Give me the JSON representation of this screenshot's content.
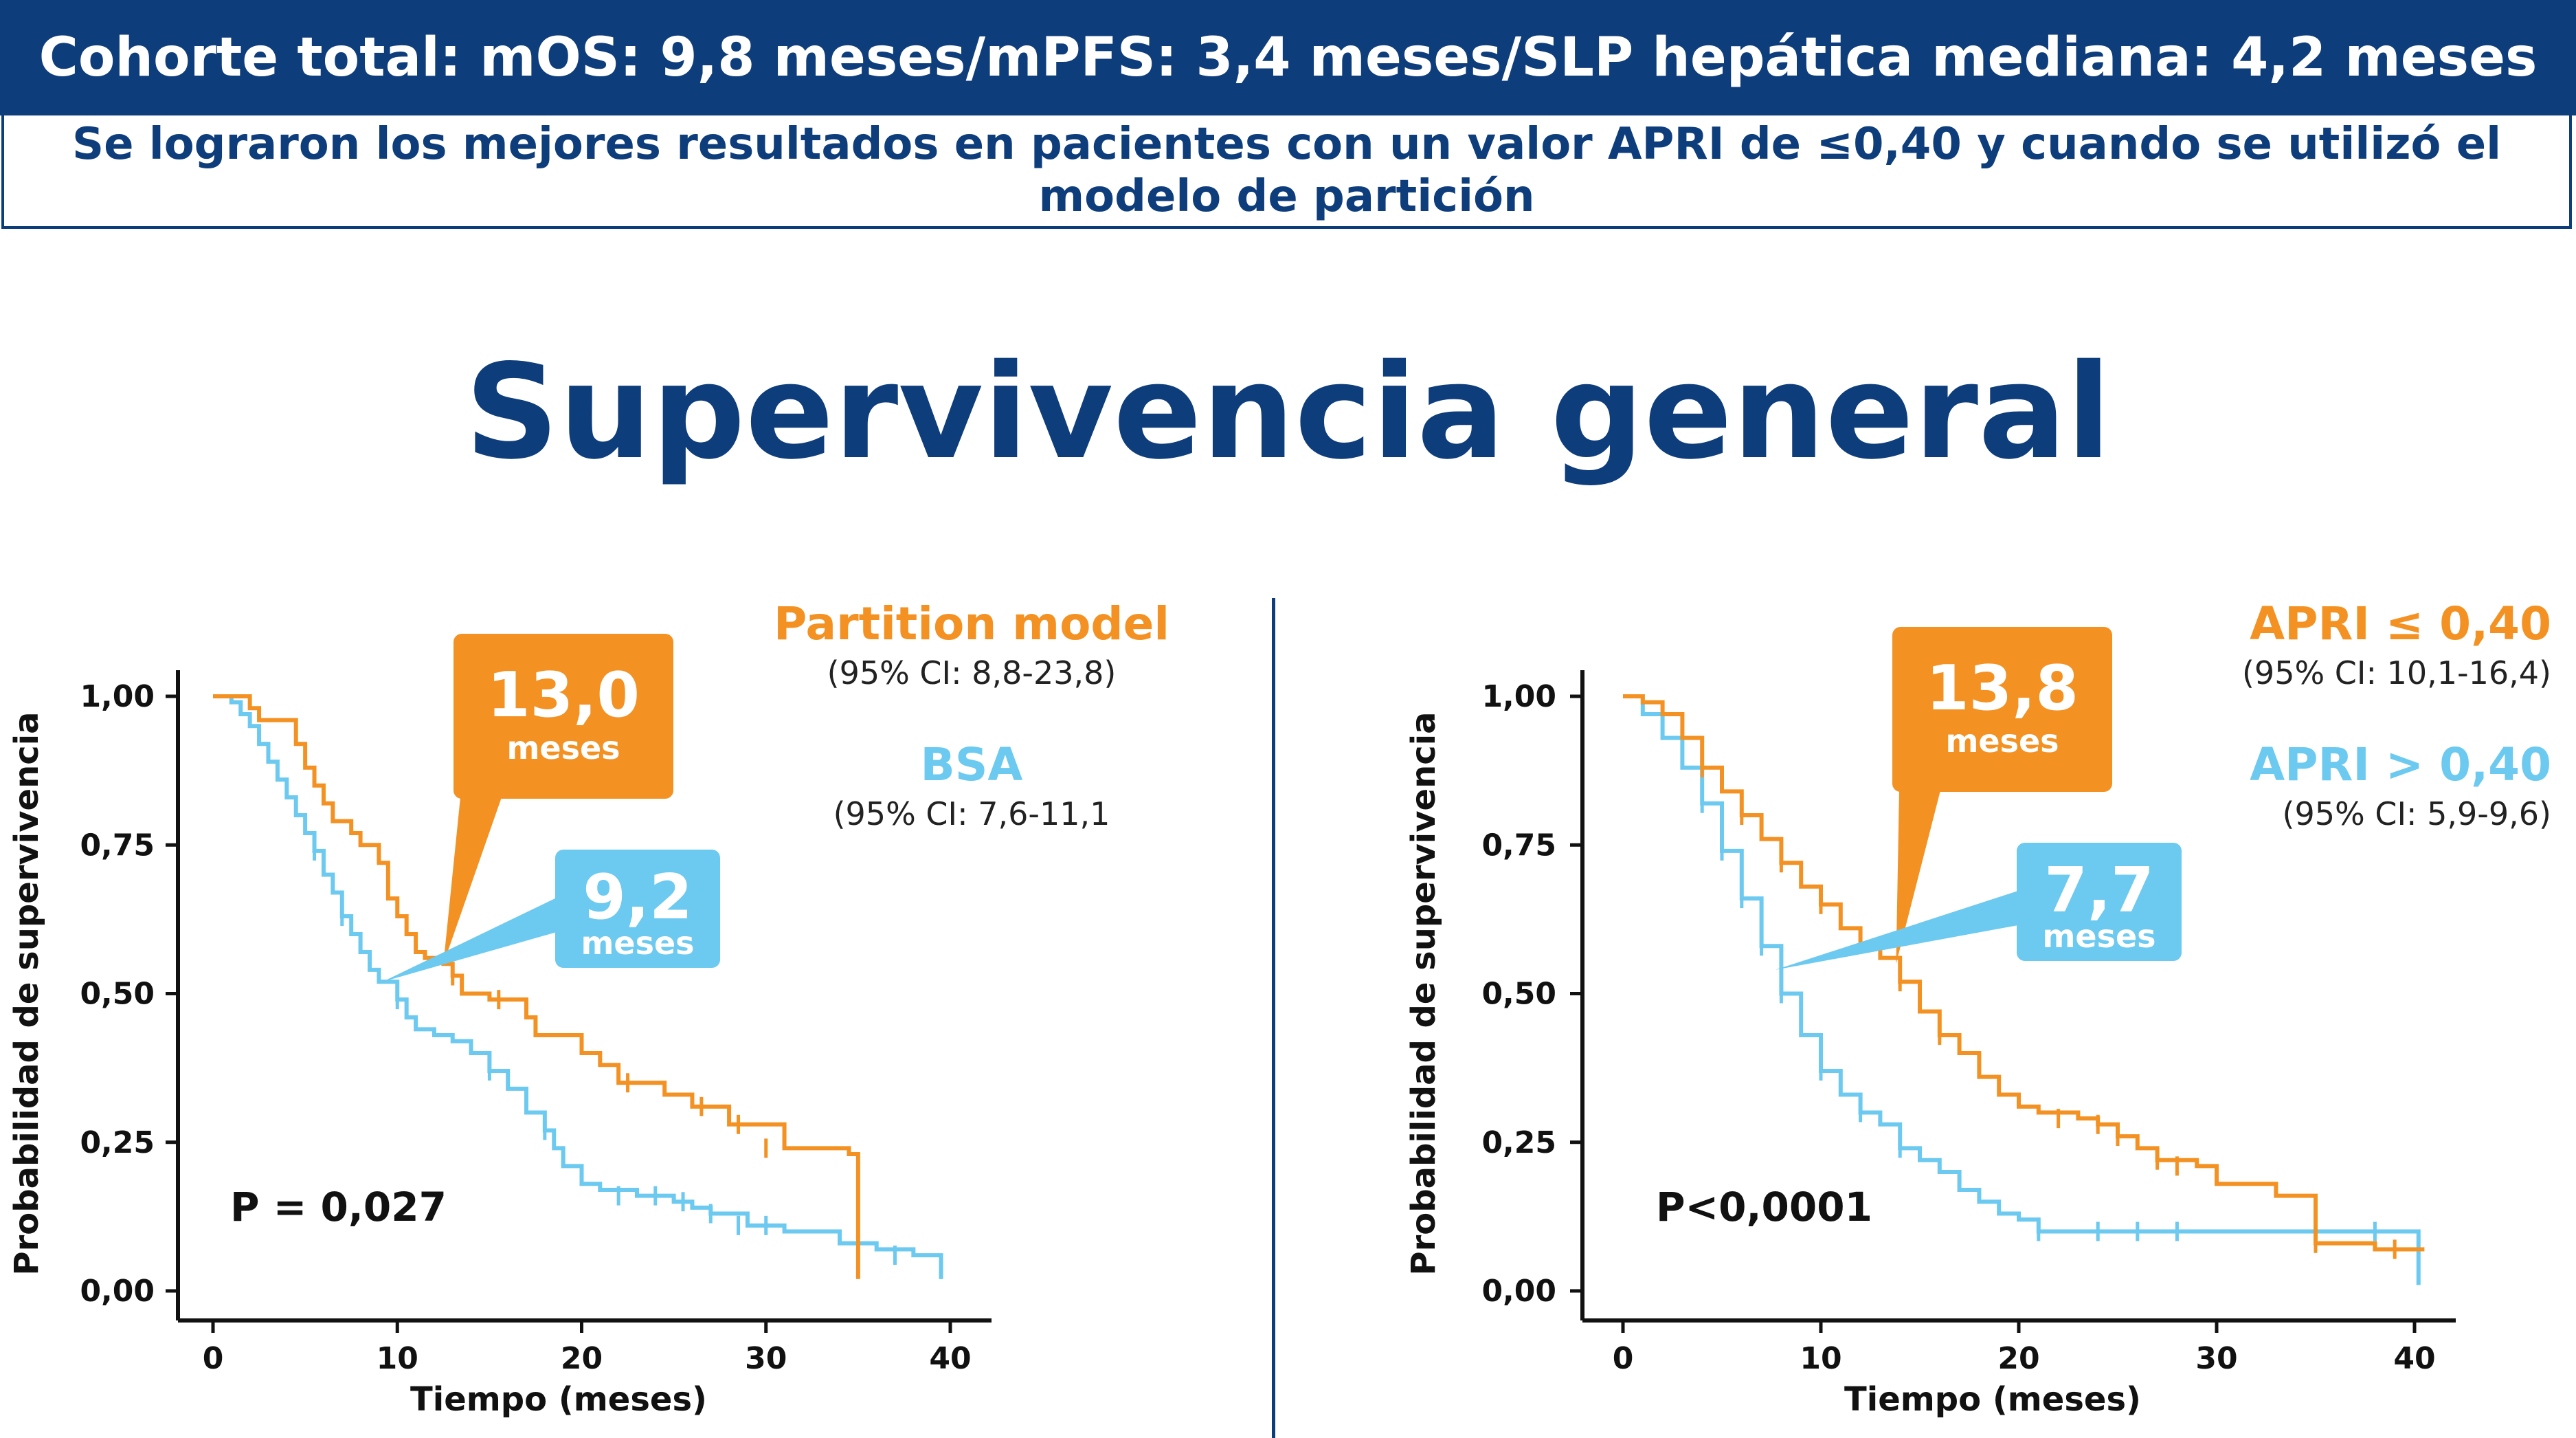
{
  "header": {
    "banner": "Cohorte total: mOS: 9,8 meses/mPFS: 3,4 meses/SLP hepática mediana: 4,2 meses",
    "sub_line1": "Se lograron los mejores resultados en pacientes con un valor APRI de ≤0,40 y cuando se utilizó el",
    "sub_line2": "modelo de partición"
  },
  "main_title": "Supervivencia general",
  "colors": {
    "navy": "#0e3d7c",
    "orange": "#f39223",
    "blue": "#6cc9ef"
  },
  "chart_data": [
    {
      "type": "line",
      "subtype": "kaplan-meier",
      "ylabel": "Probabilidad de supervivencia",
      "xlabel": "Tiempo (meses)",
      "xlim": [
        0,
        40
      ],
      "ylim": [
        0,
        1
      ],
      "xticks": [
        0,
        10,
        20,
        30,
        40
      ],
      "xtick_labels": [
        "0",
        "10",
        "20",
        "30",
        "40"
      ],
      "yticks": [
        0,
        0.25,
        0.5,
        0.75,
        1
      ],
      "ytick_labels": [
        "0,00",
        "0,25",
        "0,50",
        "0,75",
        "1,00"
      ],
      "p_value": "P = 0,027",
      "series": [
        {
          "name": "Partition model",
          "ci": "(95% CI: 8,8-23,8)",
          "color": "#f39223",
          "median": {
            "value": "13,0",
            "unit": "meses",
            "x": 12.5,
            "y": 0.55
          },
          "steps": [
            [
              0,
              1.0
            ],
            [
              2,
              0.98
            ],
            [
              2.5,
              0.96
            ],
            [
              4.5,
              0.92
            ],
            [
              5,
              0.88
            ],
            [
              5.5,
              0.85
            ],
            [
              6,
              0.82
            ],
            [
              6.5,
              0.79
            ],
            [
              7.5,
              0.77
            ],
            [
              8,
              0.75
            ],
            [
              9,
              0.72
            ],
            [
              9.5,
              0.66
            ],
            [
              10,
              0.63
            ],
            [
              10.5,
              0.6
            ],
            [
              11,
              0.57
            ],
            [
              11.5,
              0.56
            ],
            [
              12.5,
              0.55
            ],
            [
              13,
              0.53
            ],
            [
              13.5,
              0.5
            ],
            [
              15,
              0.49
            ],
            [
              17,
              0.46
            ],
            [
              17.5,
              0.43
            ],
            [
              20,
              0.4
            ],
            [
              21,
              0.38
            ],
            [
              22,
              0.35
            ],
            [
              24.5,
              0.33
            ],
            [
              26,
              0.31
            ],
            [
              28,
              0.28
            ],
            [
              31,
              0.24
            ],
            [
              34.5,
              0.23
            ],
            [
              35,
              0.02
            ]
          ],
          "end_x": 35,
          "censors": [
            [
              13,
              0.53
            ],
            [
              15.5,
              0.49
            ],
            [
              22.5,
              0.35
            ],
            [
              26.5,
              0.31
            ],
            [
              28.5,
              0.28
            ],
            [
              30,
              0.24
            ]
          ]
        },
        {
          "name": "BSA",
          "ci": "(95% CI: 7,6-11,1",
          "color": "#6cc9ef",
          "median": {
            "value": "9,2",
            "unit": "meses",
            "x": 9.2,
            "y": 0.52
          },
          "steps": [
            [
              0,
              1.0
            ],
            [
              1,
              0.99
            ],
            [
              1.5,
              0.97
            ],
            [
              2,
              0.95
            ],
            [
              2.5,
              0.92
            ],
            [
              3,
              0.89
            ],
            [
              3.5,
              0.86
            ],
            [
              4,
              0.83
            ],
            [
              4.5,
              0.8
            ],
            [
              5,
              0.77
            ],
            [
              5.5,
              0.74
            ],
            [
              6,
              0.7
            ],
            [
              6.5,
              0.67
            ],
            [
              7,
              0.63
            ],
            [
              7.5,
              0.6
            ],
            [
              8,
              0.57
            ],
            [
              8.5,
              0.54
            ],
            [
              9,
              0.52
            ],
            [
              10,
              0.49
            ],
            [
              10.5,
              0.46
            ],
            [
              11,
              0.44
            ],
            [
              12,
              0.43
            ],
            [
              13,
              0.42
            ],
            [
              14,
              0.4
            ],
            [
              15,
              0.37
            ],
            [
              16,
              0.34
            ],
            [
              17,
              0.3
            ],
            [
              18,
              0.27
            ],
            [
              18.5,
              0.24
            ],
            [
              19,
              0.21
            ],
            [
              20,
              0.18
            ],
            [
              21,
              0.17
            ],
            [
              23,
              0.16
            ],
            [
              25,
              0.15
            ],
            [
              26,
              0.14
            ],
            [
              27,
              0.13
            ],
            [
              29,
              0.11
            ],
            [
              31,
              0.1
            ],
            [
              34,
              0.08
            ],
            [
              36,
              0.07
            ],
            [
              38,
              0.06
            ],
            [
              39,
              0.06
            ],
            [
              39.5,
              0.02
            ]
          ],
          "end_x": 39.5,
          "censors": [
            [
              5.5,
              0.74
            ],
            [
              7,
              0.63
            ],
            [
              10,
              0.49
            ],
            [
              15,
              0.37
            ],
            [
              18,
              0.27
            ],
            [
              22,
              0.16
            ],
            [
              24,
              0.16
            ],
            [
              25.5,
              0.15
            ],
            [
              27,
              0.13
            ],
            [
              28.5,
              0.11
            ],
            [
              30,
              0.11
            ],
            [
              35,
              0.07
            ],
            [
              37,
              0.06
            ]
          ]
        }
      ]
    },
    {
      "type": "line",
      "subtype": "kaplan-meier",
      "ylabel": "Probabilidad de supervivencia",
      "xlabel": "Tiempo (meses)",
      "xlim": [
        0,
        40
      ],
      "ylim": [
        0,
        1
      ],
      "xticks": [
        0,
        10,
        20,
        30,
        40
      ],
      "xtick_labels": [
        "0",
        "10",
        "20",
        "30",
        "40"
      ],
      "yticks": [
        0,
        0.25,
        0.5,
        0.75,
        1
      ],
      "ytick_labels": [
        "0,00",
        "0,25",
        "0,50",
        "0,75",
        "1,00"
      ],
      "p_value": "P<0,0001",
      "series": [
        {
          "name": "APRI ≤ 0,40",
          "ci": "(95% CI: 10,1-16,4)",
          "color": "#f39223",
          "median": {
            "value": "13,8",
            "unit": "meses",
            "x": 13.8,
            "y": 0.55
          },
          "steps": [
            [
              0,
              1.0
            ],
            [
              1,
              0.99
            ],
            [
              2,
              0.97
            ],
            [
              3,
              0.93
            ],
            [
              4,
              0.88
            ],
            [
              5,
              0.84
            ],
            [
              6,
              0.8
            ],
            [
              7,
              0.76
            ],
            [
              8,
              0.72
            ],
            [
              9,
              0.68
            ],
            [
              10,
              0.65
            ],
            [
              11,
              0.61
            ],
            [
              12,
              0.58
            ],
            [
              13,
              0.56
            ],
            [
              14,
              0.52
            ],
            [
              15,
              0.47
            ],
            [
              16,
              0.43
            ],
            [
              17,
              0.4
            ],
            [
              18,
              0.36
            ],
            [
              19,
              0.33
            ],
            [
              20,
              0.31
            ],
            [
              21,
              0.3
            ],
            [
              23,
              0.29
            ],
            [
              24,
              0.28
            ],
            [
              25,
              0.26
            ],
            [
              26,
              0.24
            ],
            [
              27,
              0.22
            ],
            [
              29,
              0.21
            ],
            [
              30,
              0.18
            ],
            [
              33,
              0.16
            ],
            [
              35,
              0.08
            ],
            [
              38,
              0.07
            ],
            [
              40.5,
              0.07
            ]
          ],
          "end_x": 40.5,
          "censors": [
            [
              4,
              0.88
            ],
            [
              6,
              0.8
            ],
            [
              8,
              0.72
            ],
            [
              10,
              0.65
            ],
            [
              14,
              0.52
            ],
            [
              16,
              0.43
            ],
            [
              22,
              0.29
            ],
            [
              24,
              0.28
            ],
            [
              25,
              0.26
            ],
            [
              27,
              0.22
            ],
            [
              28,
              0.21
            ],
            [
              35,
              0.08
            ],
            [
              39,
              0.07
            ]
          ]
        },
        {
          "name": "APRI > 0,40",
          "ci": "(95% CI: 5,9-9,6)",
          "color": "#6cc9ef",
          "median": {
            "value": "7,7",
            "unit": "meses",
            "x": 7.7,
            "y": 0.54
          },
          "steps": [
            [
              0,
              1.0
            ],
            [
              1,
              0.97
            ],
            [
              2,
              0.93
            ],
            [
              3,
              0.88
            ],
            [
              4,
              0.82
            ],
            [
              5,
              0.74
            ],
            [
              6,
              0.66
            ],
            [
              7,
              0.58
            ],
            [
              8,
              0.5
            ],
            [
              9,
              0.43
            ],
            [
              10,
              0.37
            ],
            [
              11,
              0.33
            ],
            [
              12,
              0.3
            ],
            [
              13,
              0.28
            ],
            [
              14,
              0.24
            ],
            [
              15,
              0.22
            ],
            [
              16,
              0.2
            ],
            [
              17,
              0.17
            ],
            [
              18,
              0.15
            ],
            [
              19,
              0.13
            ],
            [
              20,
              0.12
            ],
            [
              21,
              0.1
            ],
            [
              25,
              0.1
            ],
            [
              40,
              0.1
            ],
            [
              40.2,
              0.01
            ]
          ],
          "end_x": 40.2,
          "censors": [
            [
              4,
              0.82
            ],
            [
              5,
              0.74
            ],
            [
              6,
              0.66
            ],
            [
              7,
              0.58
            ],
            [
              8,
              0.5
            ],
            [
              10,
              0.37
            ],
            [
              12,
              0.3
            ],
            [
              14,
              0.24
            ],
            [
              21,
              0.1
            ],
            [
              24,
              0.1
            ],
            [
              26,
              0.1
            ],
            [
              28,
              0.1
            ],
            [
              35,
              0.1
            ],
            [
              38,
              0.1
            ]
          ]
        }
      ]
    }
  ]
}
